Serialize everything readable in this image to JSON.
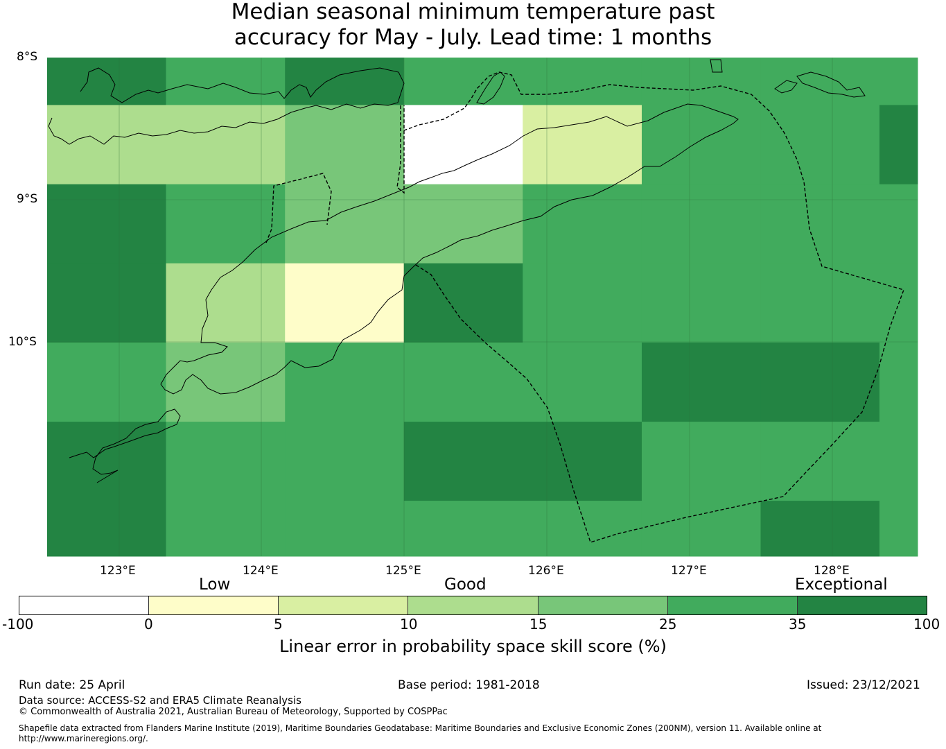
{
  "title": {
    "line1": "Median seasonal minimum temperature past",
    "line2": "accuracy for May - July. Lead time: 1 months"
  },
  "axes": {
    "lat_labels": [
      "8°S",
      "9°S",
      "10°S"
    ],
    "lon_labels": [
      "123°E",
      "124°E",
      "125°E",
      "126°E",
      "127°E",
      "128°E"
    ]
  },
  "colors": {
    "c_neg": "#ffffff",
    "c0": "#fefdc9",
    "c5": "#d9efa2",
    "c10": "#addd8e",
    "c15": "#78c679",
    "c25": "#41ab5d",
    "c35": "#238443"
  },
  "chart_data": {
    "type": "heatmap",
    "lat_range": [
      -11.5,
      -8.0
    ],
    "lon_range": [
      122.5,
      128.6
    ],
    "cell_lon_edges": [
      122.5,
      123.333,
      124.167,
      125.0,
      125.833,
      126.667,
      127.5,
      128.333,
      128.6
    ],
    "cell_lat_edges": [
      -8.0,
      -8.333,
      -8.889,
      -9.444,
      -10.0,
      -10.556,
      -11.111,
      -11.5
    ],
    "skill_class_grid": [
      [
        "c35",
        "c25",
        "c35",
        "c25",
        "c25",
        "c25",
        "c25",
        "c25"
      ],
      [
        "c10",
        "c10",
        "c15",
        "c_neg",
        "c5",
        "c25",
        "c25",
        "c35"
      ],
      [
        "c35",
        "c25",
        "c15",
        "c15",
        "c25",
        "c25",
        "c25",
        "c25"
      ],
      [
        "c35",
        "c10",
        "c0",
        "c35",
        "c25",
        "c25",
        "c25",
        "c25"
      ],
      [
        "c25",
        "c15",
        "c25",
        "c25",
        "c25",
        "c35",
        "c35",
        "c25"
      ],
      [
        "c35",
        "c25",
        "c25",
        "c35",
        "c35",
        "c25",
        "c25",
        "c25"
      ],
      [
        "c35",
        "c25",
        "c25",
        "c25",
        "c25",
        "c25",
        "c35",
        "c25"
      ]
    ]
  },
  "legend": {
    "categories": [
      "Low",
      "Good",
      "Exceptional"
    ],
    "ticks": [
      "-100",
      "0",
      "5",
      "10",
      "15",
      "25",
      "35",
      "100"
    ],
    "segment_classes": [
      "c_neg",
      "c0",
      "c5",
      "c10",
      "c15",
      "c25",
      "c35"
    ],
    "axis_title": "Linear error in probability space skill score (%)"
  },
  "footer": {
    "run_date": "Run date: 25 April",
    "base_period": "Base period: 1981-2018",
    "issued": "Issued: 23/12/2021",
    "data_source": "Data source: ACCESS-S2 and ERA5 Climate Reanalysis",
    "copyright": "© Commonwealth of Australia 2021, Australian Bureau of Meteorology, Supported by COSPPac",
    "shapefile_line1": "Shapefile data extracted from Flanders Marine Institute (2019), Maritime Boundaries Geodatabase: Maritime Boundaries and Exclusive Economic Zones (200NM), version 11. Available online at",
    "shapefile_line2": "http://www.marineregions.org/."
  }
}
